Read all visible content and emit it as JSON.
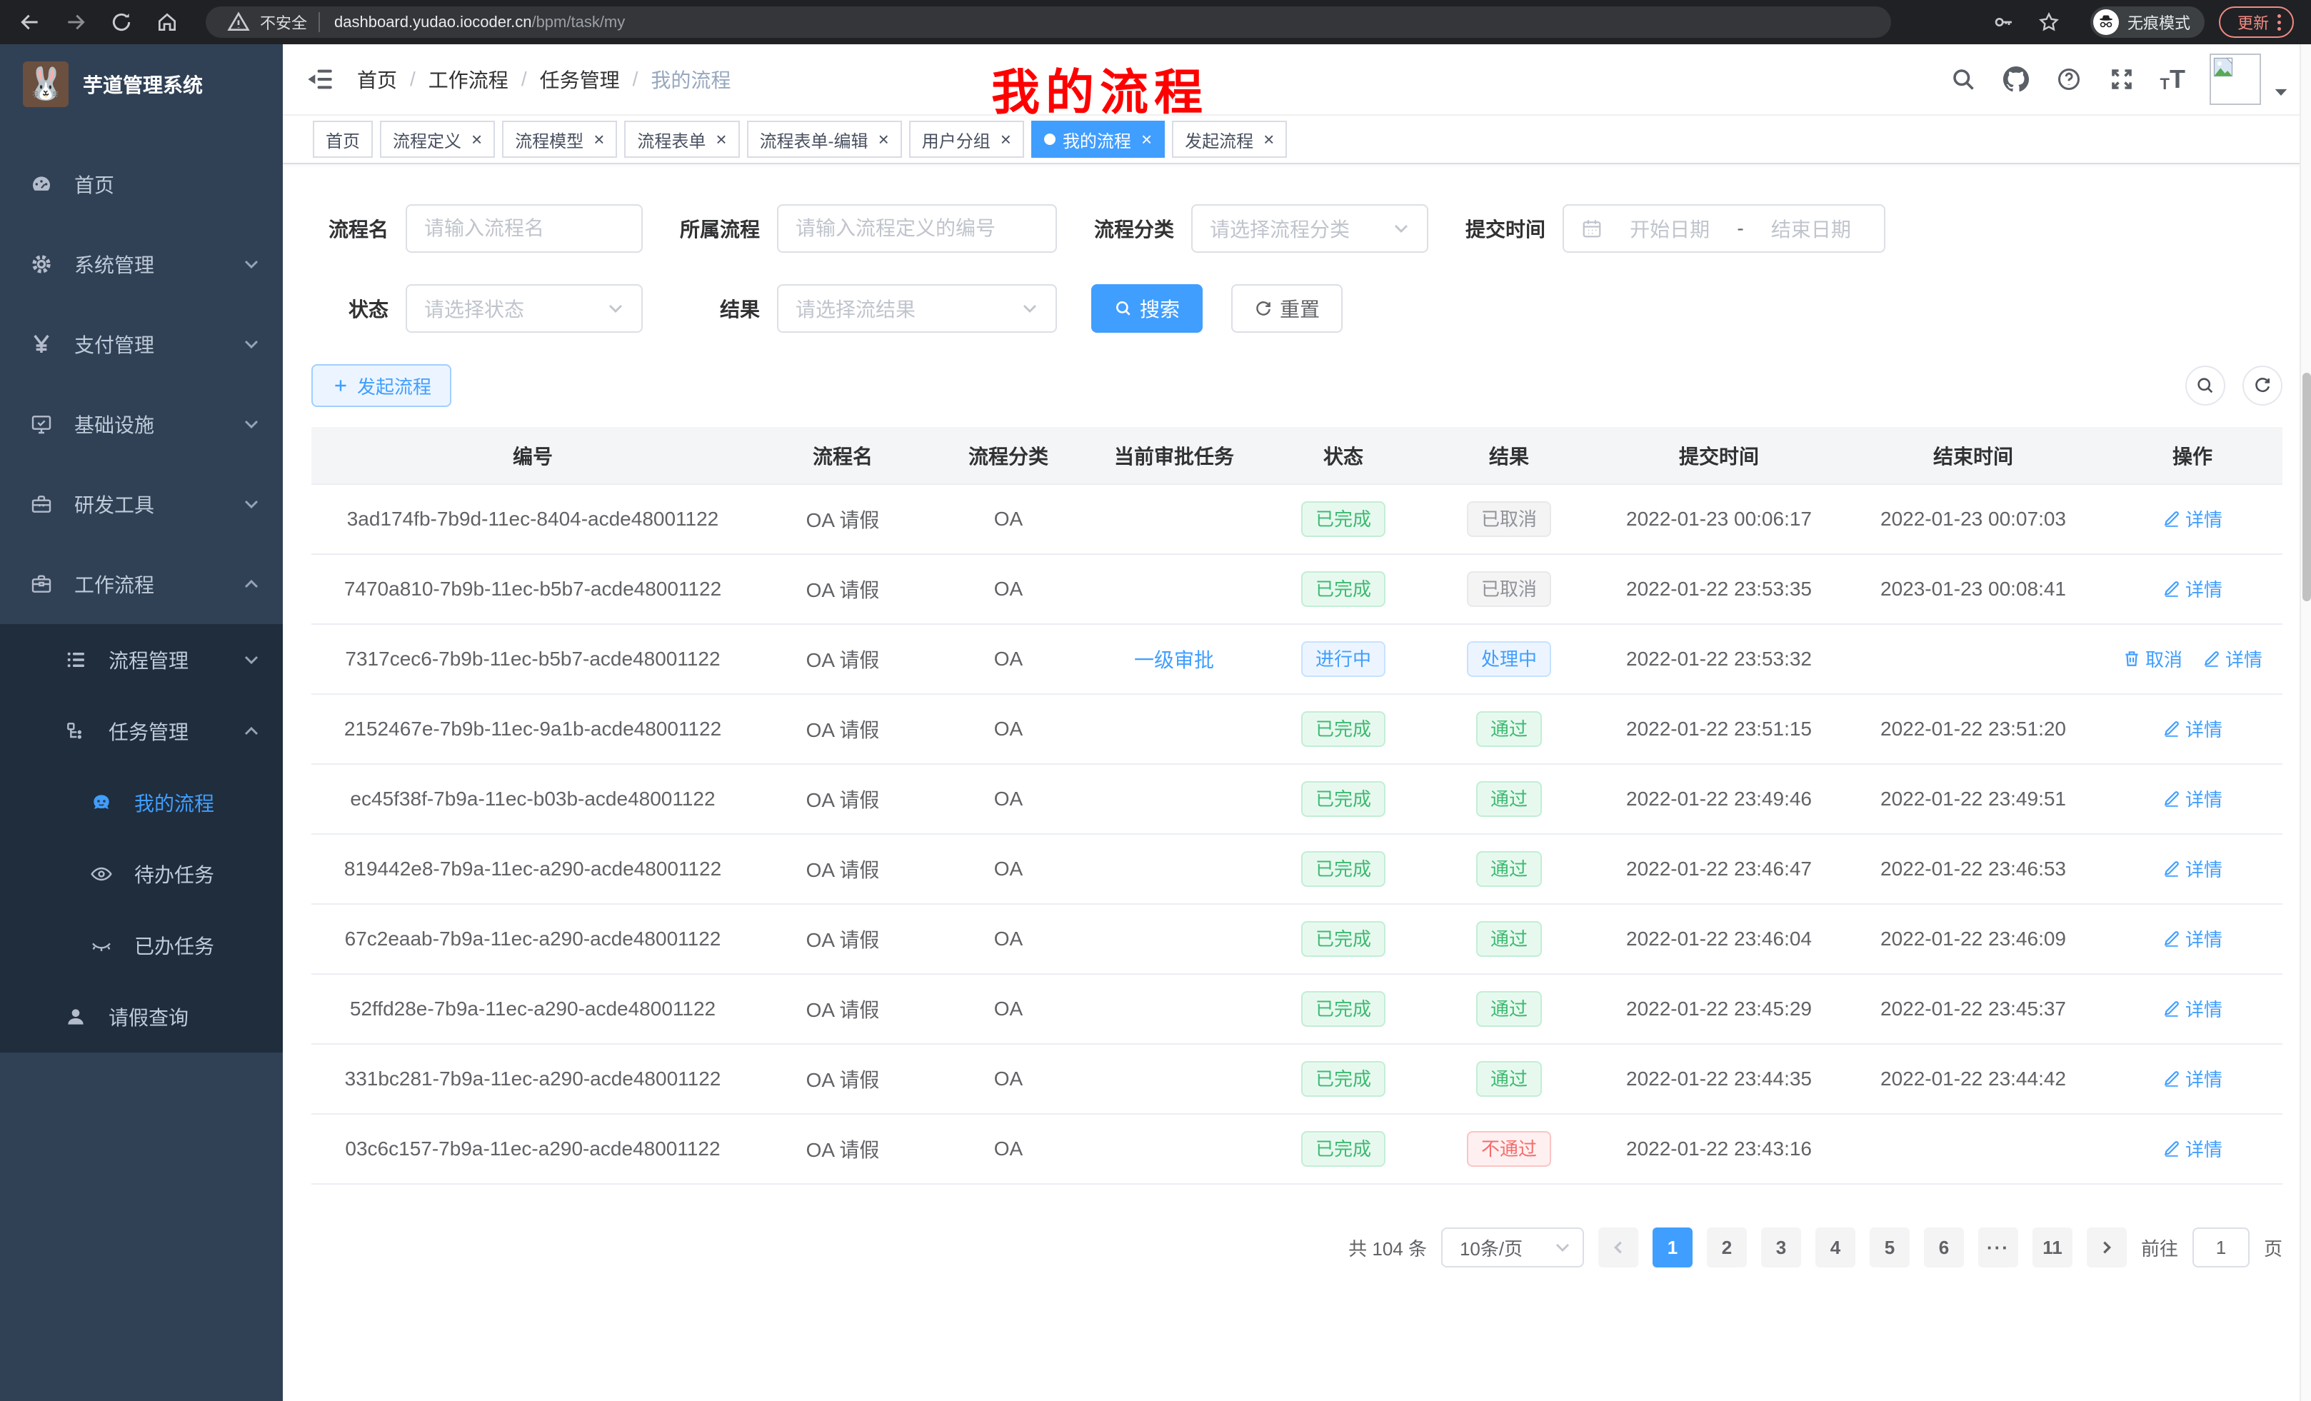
{
  "browser": {
    "security_label": "不安全",
    "url_domain": "dashboard.yudao.iocoder.cn",
    "url_path": "/bpm/task/my",
    "incognito_label": "无痕模式",
    "update_label": "更新"
  },
  "sidebar": {
    "title": "芋道管理系统",
    "items": [
      {
        "id": "home",
        "icon": "dashboard-icon",
        "label": "首页",
        "level": 1,
        "sub": false,
        "active": false,
        "chevron": ""
      },
      {
        "id": "system",
        "icon": "gear-icon",
        "label": "系统管理",
        "level": 1,
        "sub": false,
        "active": false,
        "chevron": "down"
      },
      {
        "id": "payment",
        "icon": "yen-icon",
        "label": "支付管理",
        "level": 1,
        "sub": false,
        "active": false,
        "chevron": "down"
      },
      {
        "id": "infra",
        "icon": "monitor-icon",
        "label": "基础设施",
        "level": 1,
        "sub": false,
        "active": false,
        "chevron": "down"
      },
      {
        "id": "devtools",
        "icon": "toolbox-icon",
        "label": "研发工具",
        "level": 1,
        "sub": false,
        "active": false,
        "chevron": "down"
      },
      {
        "id": "workflow",
        "icon": "briefcase-icon",
        "label": "工作流程",
        "level": 1,
        "sub": false,
        "active": false,
        "chevron": "up"
      },
      {
        "id": "process-mgmt",
        "icon": "list-icon",
        "label": "流程管理",
        "level": 2,
        "sub": true,
        "active": false,
        "chevron": "down"
      },
      {
        "id": "task-mgmt",
        "icon": "tree-icon",
        "label": "任务管理",
        "level": 2,
        "sub": true,
        "active": false,
        "chevron": "up"
      },
      {
        "id": "my-process",
        "icon": "robot-icon",
        "label": "我的流程",
        "level": 3,
        "sub": true,
        "active": true,
        "chevron": ""
      },
      {
        "id": "todo-task",
        "icon": "eye-icon",
        "label": "待办任务",
        "level": 3,
        "sub": true,
        "active": false,
        "chevron": ""
      },
      {
        "id": "done-task",
        "icon": "eye-closed-icon",
        "label": "已办任务",
        "level": 3,
        "sub": true,
        "active": false,
        "chevron": ""
      },
      {
        "id": "leave-query",
        "icon": "user-icon",
        "label": "请假查询",
        "level": 2,
        "sub": true,
        "active": false,
        "chevron": ""
      }
    ]
  },
  "breadcrumb": {
    "separator": "/",
    "items": [
      "首页",
      "工作流程",
      "任务管理",
      "我的流程"
    ]
  },
  "annotation": {
    "text": "我的流程",
    "color": "#fe0000"
  },
  "tabs": [
    {
      "label": "首页",
      "closable": false,
      "active": false
    },
    {
      "label": "流程定义",
      "closable": true,
      "active": false
    },
    {
      "label": "流程模型",
      "closable": true,
      "active": false
    },
    {
      "label": "流程表单",
      "closable": true,
      "active": false
    },
    {
      "label": "流程表单-编辑",
      "closable": true,
      "active": false
    },
    {
      "label": "用户分组",
      "closable": true,
      "active": false
    },
    {
      "label": "我的流程",
      "closable": true,
      "active": true
    },
    {
      "label": "发起流程",
      "closable": true,
      "active": false
    }
  ],
  "filters": {
    "name_label": "流程名",
    "name_placeholder": "请输入流程名",
    "definition_label": "所属流程",
    "definition_placeholder": "请输入流程定义的编号",
    "category_label": "流程分类",
    "category_placeholder": "请选择流程分类",
    "time_label": "提交时间",
    "start_placeholder": "开始日期",
    "date_separator": "-",
    "end_placeholder": "结束日期",
    "status_label": "状态",
    "status_placeholder": "请选择状态",
    "result_label": "结果",
    "result_placeholder": "请选择流结果",
    "search_label": "搜索",
    "reset_label": "重置"
  },
  "toolbar": {
    "create_label": "发起流程"
  },
  "table": {
    "columns": [
      "编号",
      "流程名",
      "流程分类",
      "当前审批任务",
      "状态",
      "结果",
      "提交时间",
      "结束时间",
      "操作"
    ],
    "action_labels": {
      "detail": "详情",
      "cancel": "取消"
    },
    "rows": [
      {
        "id": "3ad174fb-7b9d-11ec-8404-acde48001122",
        "name": "OA 请假",
        "category": "OA",
        "task": "",
        "status": {
          "text": "已完成",
          "type": "success"
        },
        "result": {
          "text": "已取消",
          "type": "info"
        },
        "submit": "2022-01-23 00:06:17",
        "end": "2022-01-23 00:07:03",
        "actions": [
          "detail"
        ]
      },
      {
        "id": "7470a810-7b9b-11ec-b5b7-acde48001122",
        "name": "OA 请假",
        "category": "OA",
        "task": "",
        "status": {
          "text": "已完成",
          "type": "success"
        },
        "result": {
          "text": "已取消",
          "type": "info"
        },
        "submit": "2022-01-22 23:53:35",
        "end": "2023-01-23 00:08:41",
        "actions": [
          "detail"
        ]
      },
      {
        "id": "7317cec6-7b9b-11ec-b5b7-acde48001122",
        "name": "OA 请假",
        "category": "OA",
        "task": "一级审批",
        "status": {
          "text": "进行中",
          "type": "primary"
        },
        "result": {
          "text": "处理中",
          "type": "primary"
        },
        "submit": "2022-01-22 23:53:32",
        "end": "",
        "actions": [
          "cancel",
          "detail"
        ]
      },
      {
        "id": "2152467e-7b9b-11ec-9a1b-acde48001122",
        "name": "OA 请假",
        "category": "OA",
        "task": "",
        "status": {
          "text": "已完成",
          "type": "success"
        },
        "result": {
          "text": "通过",
          "type": "success"
        },
        "submit": "2022-01-22 23:51:15",
        "end": "2022-01-22 23:51:20",
        "actions": [
          "detail"
        ]
      },
      {
        "id": "ec45f38f-7b9a-11ec-b03b-acde48001122",
        "name": "OA 请假",
        "category": "OA",
        "task": "",
        "status": {
          "text": "已完成",
          "type": "success"
        },
        "result": {
          "text": "通过",
          "type": "success"
        },
        "submit": "2022-01-22 23:49:46",
        "end": "2022-01-22 23:49:51",
        "actions": [
          "detail"
        ]
      },
      {
        "id": "819442e8-7b9a-11ec-a290-acde48001122",
        "name": "OA 请假",
        "category": "OA",
        "task": "",
        "status": {
          "text": "已完成",
          "type": "success"
        },
        "result": {
          "text": "通过",
          "type": "success"
        },
        "submit": "2022-01-22 23:46:47",
        "end": "2022-01-22 23:46:53",
        "actions": [
          "detail"
        ]
      },
      {
        "id": "67c2eaab-7b9a-11ec-a290-acde48001122",
        "name": "OA 请假",
        "category": "OA",
        "task": "",
        "status": {
          "text": "已完成",
          "type": "success"
        },
        "result": {
          "text": "通过",
          "type": "success"
        },
        "submit": "2022-01-22 23:46:04",
        "end": "2022-01-22 23:46:09",
        "actions": [
          "detail"
        ]
      },
      {
        "id": "52ffd28e-7b9a-11ec-a290-acde48001122",
        "name": "OA 请假",
        "category": "OA",
        "task": "",
        "status": {
          "text": "已完成",
          "type": "success"
        },
        "result": {
          "text": "通过",
          "type": "success"
        },
        "submit": "2022-01-22 23:45:29",
        "end": "2022-01-22 23:45:37",
        "actions": [
          "detail"
        ]
      },
      {
        "id": "331bc281-7b9a-11ec-a290-acde48001122",
        "name": "OA 请假",
        "category": "OA",
        "task": "",
        "status": {
          "text": "已完成",
          "type": "success"
        },
        "result": {
          "text": "通过",
          "type": "success"
        },
        "submit": "2022-01-22 23:44:35",
        "end": "2022-01-22 23:44:42",
        "actions": [
          "detail"
        ]
      },
      {
        "id": "03c6c157-7b9a-11ec-a290-acde48001122",
        "name": "OA 请假",
        "category": "OA",
        "task": "",
        "status": {
          "text": "已完成",
          "type": "success"
        },
        "result": {
          "text": "不通过",
          "type": "danger"
        },
        "submit": "2022-01-22 23:43:16",
        "end": "",
        "actions": [
          "detail"
        ]
      }
    ]
  },
  "pagination": {
    "total_label": "共 104 条",
    "page_size": "10条/页",
    "pages": [
      "1",
      "2",
      "3",
      "4",
      "5",
      "6",
      "...",
      "11"
    ],
    "active_page": "1",
    "goto_label": "前往",
    "goto_value": "1",
    "page_unit": "页"
  }
}
